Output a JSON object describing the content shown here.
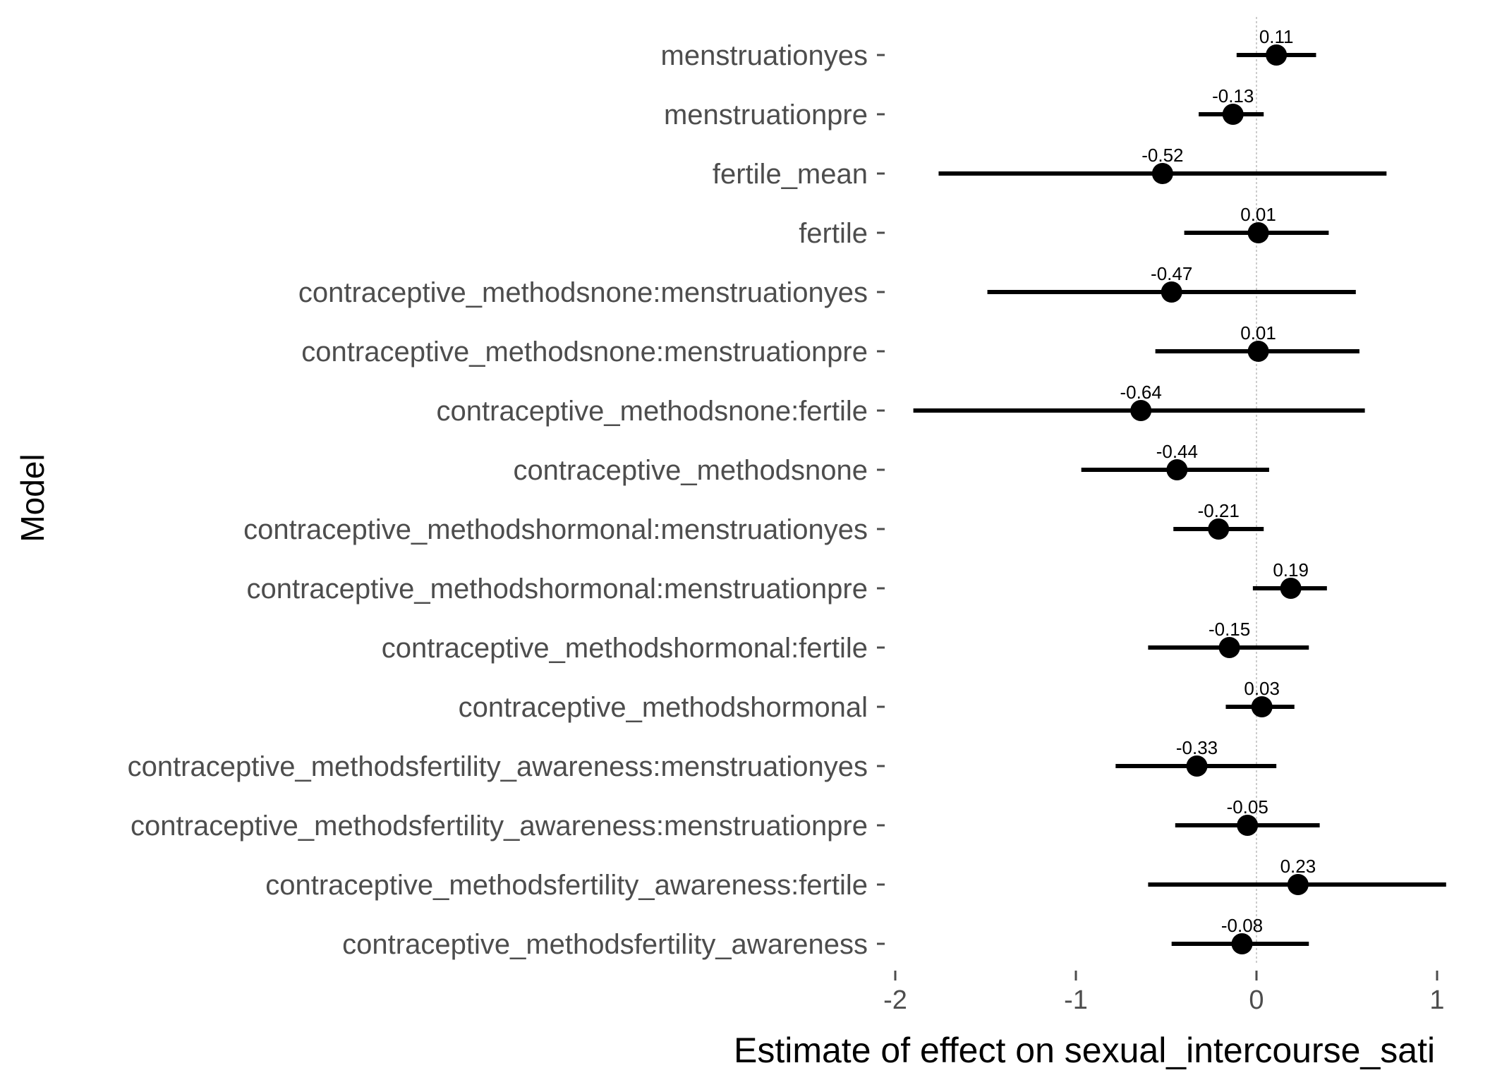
{
  "chart_data": {
    "type": "scatter",
    "subtype": "coefficient-plot-with-intervals",
    "ylabel": "Model",
    "xlabel": "Estimate of effect on sexual_intercourse_sati",
    "x_ticks": [
      -2,
      -1,
      0,
      1
    ],
    "x_tick_labels": [
      "-2",
      "-1",
      "0",
      "1"
    ],
    "xlim": [
      -2.08,
      1.2
    ],
    "reference_line_x": 0,
    "grid": false,
    "legend": "none",
    "colors": {
      "marks": "#000000",
      "labels": "#4d4d4d",
      "reference_line": "#cccccc"
    },
    "terms": [
      {
        "term": "menstruationyes",
        "estimate": 0.11,
        "label": "0.11",
        "lower": -0.11,
        "upper": 0.33
      },
      {
        "term": "menstruationpre",
        "estimate": -0.13,
        "label": "-0.13",
        "lower": -0.32,
        "upper": 0.04
      },
      {
        "term": "fertile_mean",
        "estimate": -0.52,
        "label": "-0.52",
        "lower": -1.76,
        "upper": 0.72
      },
      {
        "term": "fertile",
        "estimate": 0.01,
        "label": "0.01",
        "lower": -0.4,
        "upper": 0.4
      },
      {
        "term": "contraceptive_methodsnone:menstruationyes",
        "estimate": -0.47,
        "label": "-0.47",
        "lower": -1.49,
        "upper": 0.55
      },
      {
        "term": "contraceptive_methodsnone:menstruationpre",
        "estimate": 0.01,
        "label": "0.01",
        "lower": -0.56,
        "upper": 0.57
      },
      {
        "term": "contraceptive_methodsnone:fertile",
        "estimate": -0.64,
        "label": "-0.64",
        "lower": -1.9,
        "upper": 0.6
      },
      {
        "term": "contraceptive_methodsnone",
        "estimate": -0.44,
        "label": "-0.44",
        "lower": -0.97,
        "upper": 0.07
      },
      {
        "term": "contraceptive_methodshormonal:menstruationyes",
        "estimate": -0.21,
        "label": "-0.21",
        "lower": -0.46,
        "upper": 0.04
      },
      {
        "term": "contraceptive_methodshormonal:menstruationpre",
        "estimate": 0.19,
        "label": "0.19",
        "lower": -0.02,
        "upper": 0.39
      },
      {
        "term": "contraceptive_methodshormonal:fertile",
        "estimate": -0.15,
        "label": "-0.15",
        "lower": -0.6,
        "upper": 0.29
      },
      {
        "term": "contraceptive_methodshormonal",
        "estimate": 0.03,
        "label": "0.03",
        "lower": -0.17,
        "upper": 0.21
      },
      {
        "term": "contraceptive_methodsfertility_awareness:menstruationyes",
        "estimate": -0.33,
        "label": "-0.33",
        "lower": -0.78,
        "upper": 0.11
      },
      {
        "term": "contraceptive_methodsfertility_awareness:menstruationpre",
        "estimate": -0.05,
        "label": "-0.05",
        "lower": -0.45,
        "upper": 0.35
      },
      {
        "term": "contraceptive_methodsfertility_awareness:fertile",
        "estimate": 0.23,
        "label": "0.23",
        "lower": -0.6,
        "upper": 1.05
      },
      {
        "term": "contraceptive_methodsfertility_awareness",
        "estimate": -0.08,
        "label": "-0.08",
        "lower": -0.47,
        "upper": 0.29
      }
    ]
  }
}
